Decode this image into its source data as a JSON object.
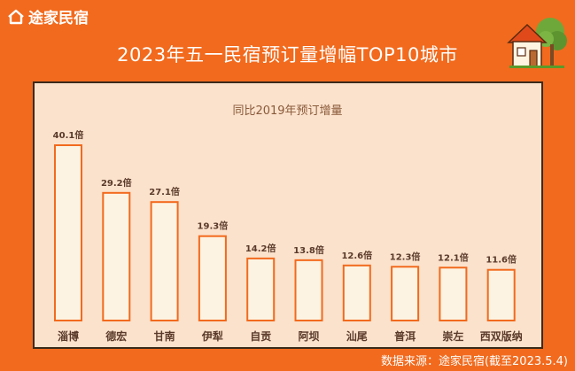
{
  "brand": {
    "name": "途家民宿"
  },
  "colors": {
    "background": "#f26a1d",
    "panel": "#fbe2cc",
    "bar_fill": "#fdf3e2",
    "bar_stroke": "#f26a1d",
    "label_text": "#5a3a2a"
  },
  "icons": {
    "brand_logo": "house-outline-icon",
    "decoration": "house-with-tree-icon"
  },
  "chart_data": {
    "type": "bar",
    "title": "2023年五一民宿预订量增幅TOP10城市",
    "subtitle": "同比2019年预订增量",
    "categories": [
      "淄博",
      "德宏",
      "甘南",
      "伊犁",
      "自贡",
      "阿坝",
      "汕尾",
      "普洱",
      "崇左",
      "西双版纳"
    ],
    "values": [
      40.1,
      29.2,
      27.1,
      19.3,
      14.2,
      13.8,
      12.6,
      12.3,
      12.1,
      11.6
    ],
    "value_labels": [
      "40.1倍",
      "29.2倍",
      "27.1倍",
      "19.3倍",
      "14.2倍",
      "13.8倍",
      "12.6倍",
      "12.3倍",
      "12.1倍",
      "11.6倍"
    ],
    "ylim": [
      0,
      40.1
    ],
    "grid": false,
    "legend": "none"
  },
  "source": "数据来源：途家民宿(截至2023.5.4)"
}
